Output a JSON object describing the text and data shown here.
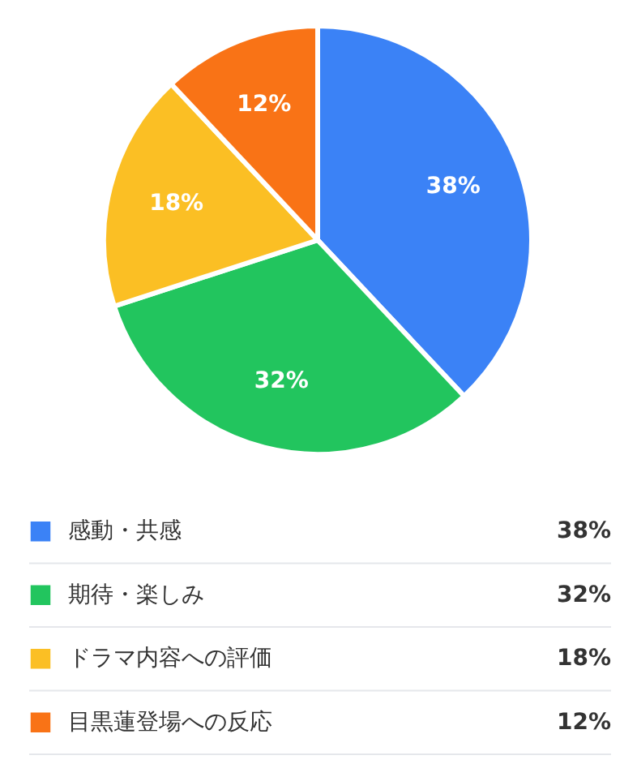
{
  "chart_data": {
    "type": "pie",
    "categories": [
      "感動・共感",
      "期待・楽しみ",
      "ドラマ内容への評価",
      "目黒蓮登場への反応"
    ],
    "values": [
      38,
      32,
      18,
      12
    ],
    "colors": [
      "#3b82f6",
      "#22c55e",
      "#fbbf24",
      "#f97316"
    ],
    "value_labels": [
      "38%",
      "32%",
      "18%",
      "12%"
    ],
    "legend": "bottom"
  }
}
